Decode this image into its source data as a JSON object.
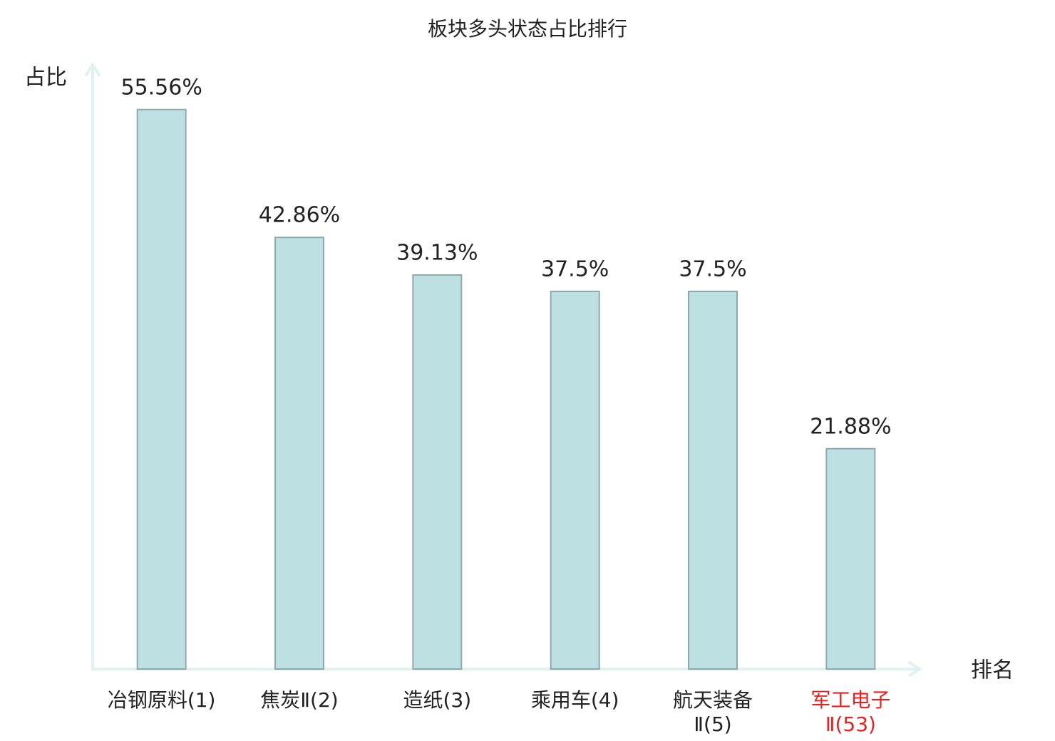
{
  "chart_data": {
    "type": "bar",
    "title": "板块多头状态占比排行",
    "y_label": "占比",
    "x_label": "排名",
    "categories": [
      "冶钢原料(1)",
      "焦炭Ⅱ(2)",
      "造纸(3)",
      "乘用车(4)",
      "航天装备\nⅡ(5)",
      "军工电子\nⅡ(53)"
    ],
    "category_colors": [
      "#222222",
      "#222222",
      "#222222",
      "#222222",
      "#222222",
      "#e8201f"
    ],
    "values": [
      55.56,
      42.86,
      39.13,
      37.5,
      37.5,
      21.88
    ],
    "value_labels": [
      "55.56%",
      "42.86%",
      "39.13%",
      "37.5%",
      "37.5%",
      "21.88%"
    ],
    "color": "#bde0e2",
    "edge_color": "#8fa9ab",
    "axis_color": "#dff2ef",
    "ylim": [
      0,
      60
    ]
  }
}
